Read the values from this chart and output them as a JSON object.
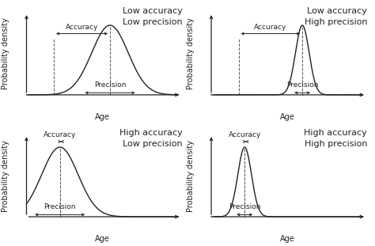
{
  "panels": [
    {
      "title": "Low accuracy\nLow precision",
      "mean": 0.55,
      "std": 0.12,
      "true_val": 0.18,
      "row": 0,
      "col": 0
    },
    {
      "title": "Low accuracy\nHigh precision",
      "mean": 0.6,
      "std": 0.045,
      "true_val": 0.18,
      "row": 0,
      "col": 1
    },
    {
      "title": "High accuracy\nLow precision",
      "mean": 0.22,
      "std": 0.12,
      "true_val": 0.22,
      "row": 1,
      "col": 0
    },
    {
      "title": "High accuracy\nHigh precision",
      "mean": 0.22,
      "std": 0.045,
      "true_val": 0.22,
      "row": 1,
      "col": 1
    }
  ],
  "xlabel": "Age",
  "ylabel": "Probability density",
  "curve_color": "#222222",
  "arrow_color": "#222222",
  "dashed_color": "#555555",
  "bg_color": "#ffffff",
  "fig_bg": "#ffffff",
  "fontsize_label": 7,
  "fontsize_title": 8,
  "fontsize_annot": 6.5
}
